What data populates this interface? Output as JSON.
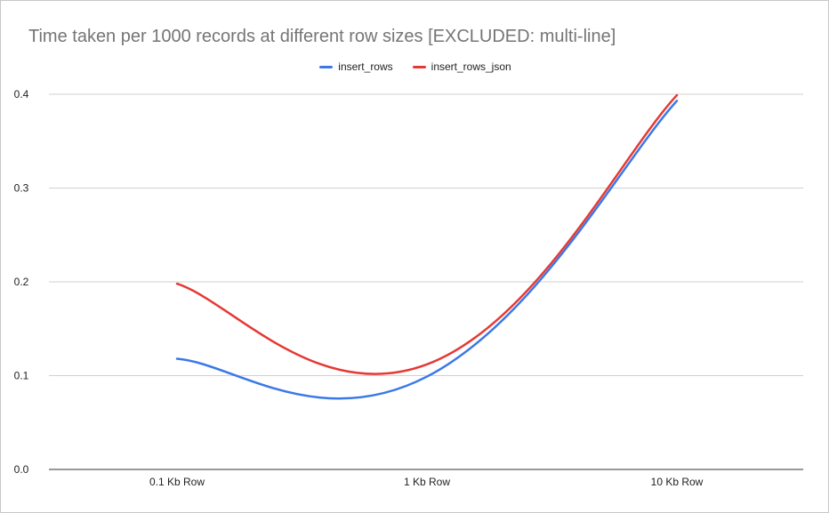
{
  "chart_data": {
    "type": "line",
    "title": "Time taken per 1000 records at different row sizes [EXCLUDED: multi-line]",
    "categories": [
      "0.1 Kb Row",
      "1 Kb Row",
      "10 Kb Row"
    ],
    "series": [
      {
        "name": "insert_rows",
        "values": [
          0.118,
          0.099,
          0.393
        ],
        "color": "#3b78e7"
      },
      {
        "name": "insert_rows_json",
        "values": [
          0.198,
          0.112,
          0.399
        ],
        "color": "#e53935"
      }
    ],
    "ylim": [
      0,
      0.4
    ],
    "yticks": [
      "0.0",
      "0.1",
      "0.2",
      "0.3",
      "0.4"
    ],
    "grid": true,
    "legend_position": "top-center",
    "smooth": true
  }
}
